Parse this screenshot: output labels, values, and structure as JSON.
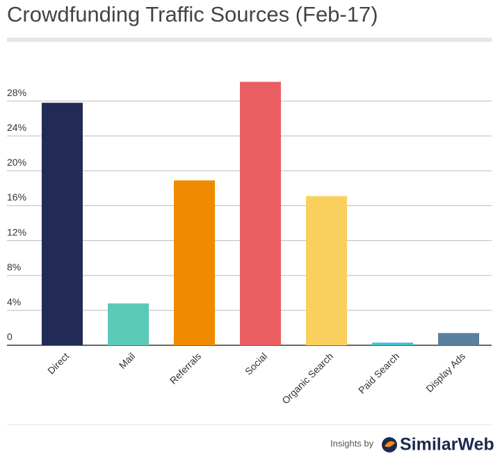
{
  "chart_data": {
    "type": "bar",
    "title": "Crowdfunding Traffic Sources (Feb-17)",
    "categories": [
      "Direct",
      "Mail",
      "Referrals",
      "Social",
      "Organic Search",
      "Paid Search",
      "Display Ads"
    ],
    "values": [
      27.8,
      4.8,
      18.9,
      30.2,
      17.1,
      0.3,
      1.4
    ],
    "colors": [
      "#222b55",
      "#5bc9b8",
      "#f08a00",
      "#ea5f62",
      "#f9cf5e",
      "#3fbfd0",
      "#5b7f9e"
    ],
    "ylim": [
      0,
      32
    ],
    "yticks": [
      0,
      {
        "value": 4,
        "label": "4%"
      },
      {
        "value": 8,
        "label": "8%"
      },
      {
        "value": 12,
        "label": "12%"
      },
      {
        "value": 16,
        "label": "16%"
      },
      {
        "value": 20,
        "label": "20%"
      },
      {
        "value": 24,
        "label": "24%"
      },
      {
        "value": 28,
        "label": "28%"
      }
    ],
    "grid": true
  },
  "footer": {
    "prefix": "Insights by",
    "brand": "SimilarWeb"
  }
}
